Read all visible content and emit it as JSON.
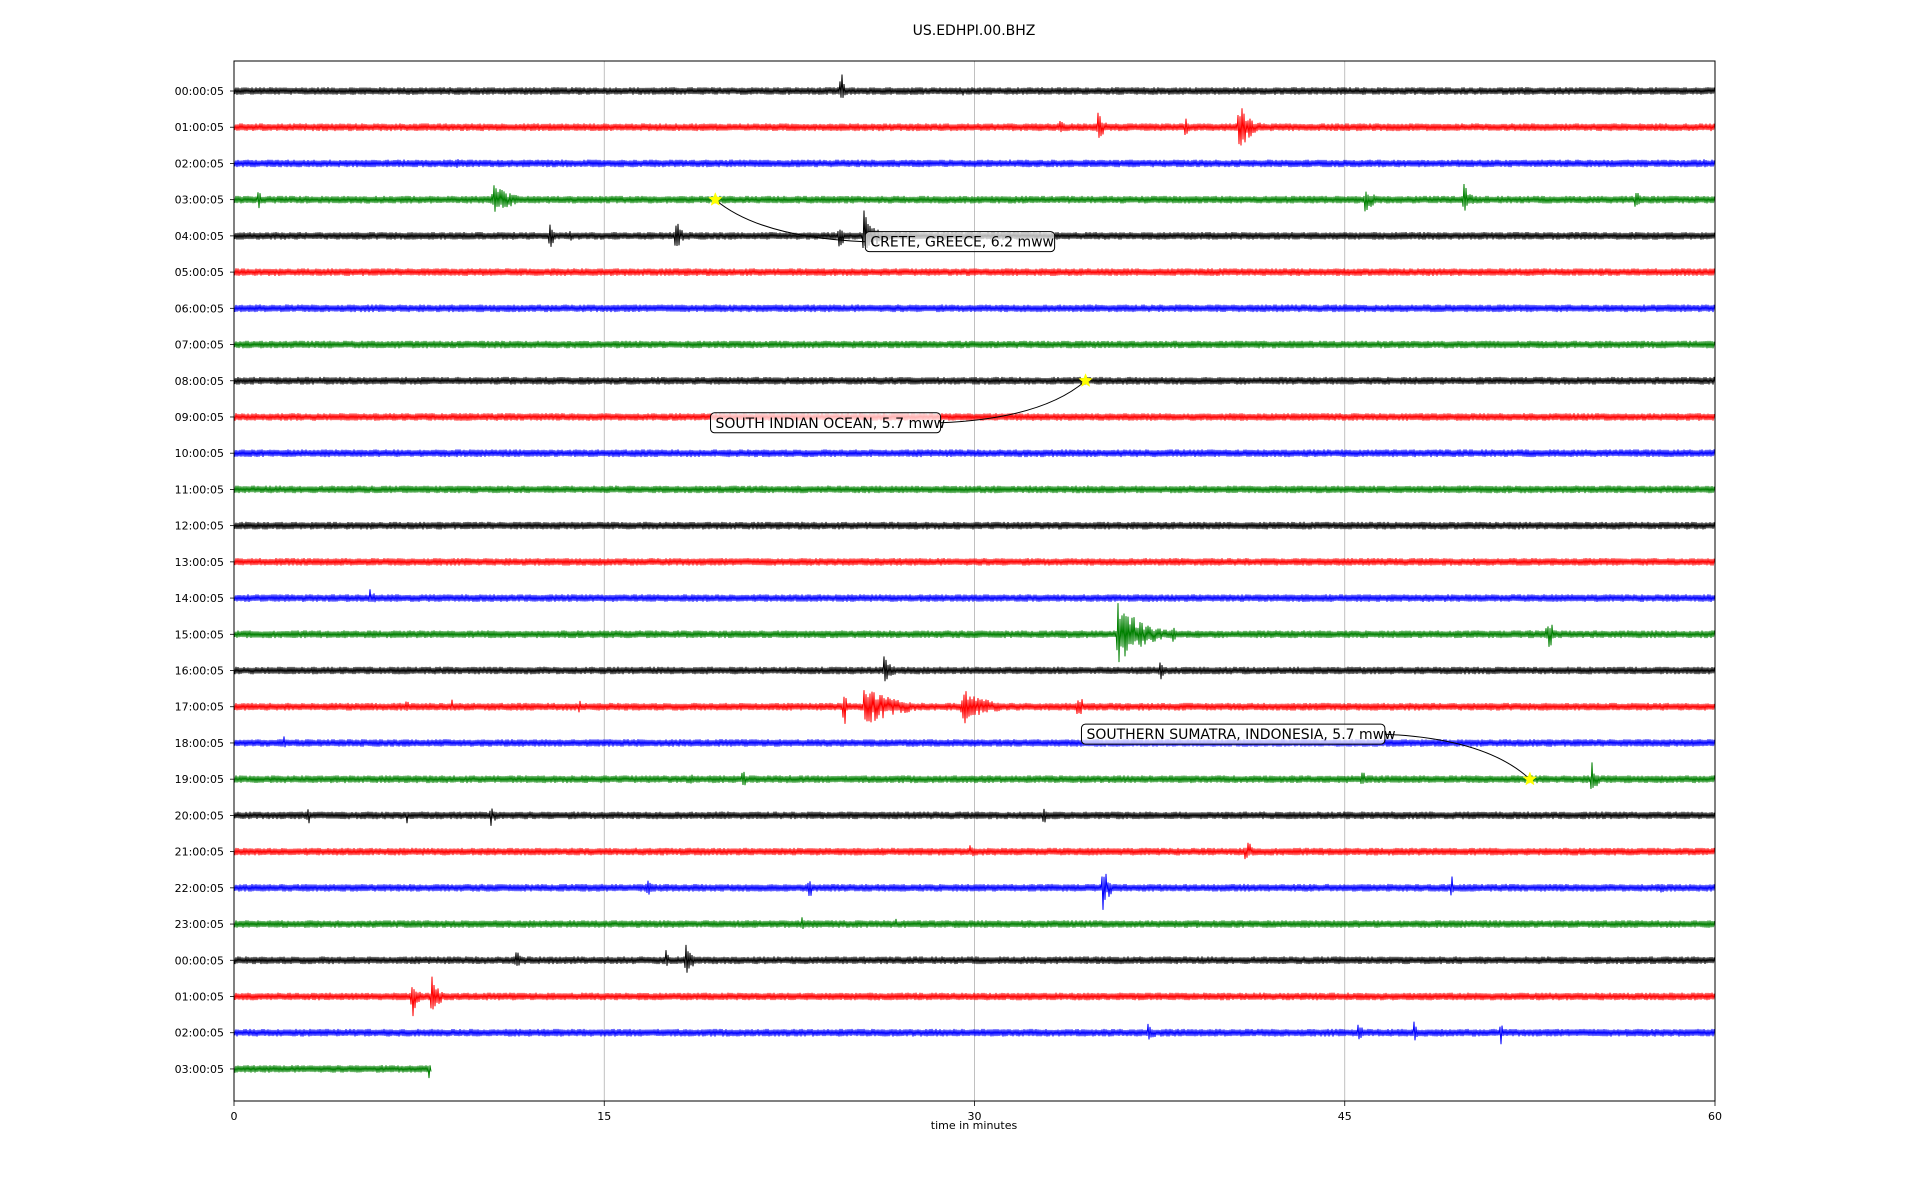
{
  "chart_data": {
    "type": "line",
    "title": "US.EDHPI.00.BHZ",
    "xlabel": "time in minutes",
    "xlim": [
      0,
      60
    ],
    "x_ticks": [
      0,
      15,
      30,
      45,
      60
    ],
    "x_tick_labels": [
      "0",
      "15",
      "30",
      "45",
      "60"
    ],
    "grid_x": true,
    "trace_colors": [
      "#000000",
      "#ff0000",
      "#0000ff",
      "#008000"
    ],
    "row_labels": [
      "00:00:05",
      "01:00:05",
      "02:00:05",
      "03:00:05",
      "04:00:05",
      "05:00:05",
      "06:00:05",
      "07:00:05",
      "08:00:05",
      "09:00:05",
      "10:00:05",
      "11:00:05",
      "12:00:05",
      "13:00:05",
      "14:00:05",
      "15:00:05",
      "16:00:05",
      "17:00:05",
      "18:00:05",
      "19:00:05",
      "20:00:05",
      "21:00:05",
      "22:00:05",
      "23:00:05",
      "00:00:05",
      "01:00:05",
      "02:00:05",
      "03:00:05"
    ],
    "last_row_end_minute": 8.0,
    "events": [
      {
        "label": "CRETE, GREECE, 6.2 mww",
        "row": 3,
        "minute": 19.5
      },
      {
        "label": "SOUTH INDIAN OCEAN, 5.7 mww",
        "row": 8,
        "minute": 34.5
      },
      {
        "label": "SOUTHERN SUMATRA, INDONESIA, 5.7 mww",
        "row": 19,
        "minute": 52.5
      }
    ],
    "bursts": [
      {
        "row": 0,
        "minute": 24.6,
        "amp": 0.9,
        "dur": 0.3
      },
      {
        "row": 0,
        "minute": 29.5,
        "amp": 0.3,
        "dur": 0.2
      },
      {
        "row": 1,
        "minute": 33.5,
        "amp": 0.55,
        "dur": 0.4
      },
      {
        "row": 1,
        "minute": 35.0,
        "amp": 0.6,
        "dur": 0.8
      },
      {
        "row": 1,
        "minute": 38.5,
        "amp": 0.45,
        "dur": 1.2
      },
      {
        "row": 1,
        "minute": 40.7,
        "amp": 1.0,
        "dur": 1.5
      },
      {
        "row": 2,
        "minute": 9.0,
        "amp": 0.3,
        "dur": 0.5
      },
      {
        "row": 2,
        "minute": 23.0,
        "amp": 0.25,
        "dur": 0.3
      },
      {
        "row": 2,
        "minute": 59.6,
        "amp": 0.35,
        "dur": 0.2
      },
      {
        "row": 3,
        "minute": 1.0,
        "amp": 0.7,
        "dur": 0.2
      },
      {
        "row": 3,
        "minute": 10.5,
        "amp": 0.6,
        "dur": 2.5
      },
      {
        "row": 3,
        "minute": 45.8,
        "amp": 0.55,
        "dur": 1.2
      },
      {
        "row": 3,
        "minute": 49.8,
        "amp": 0.75,
        "dur": 0.8
      },
      {
        "row": 3,
        "minute": 56.8,
        "amp": 0.55,
        "dur": 0.4
      },
      {
        "row": 4,
        "minute": 12.8,
        "amp": 0.75,
        "dur": 0.4
      },
      {
        "row": 4,
        "minute": 13.6,
        "amp": 0.5,
        "dur": 0.3
      },
      {
        "row": 4,
        "minute": 17.9,
        "amp": 0.8,
        "dur": 0.6
      },
      {
        "row": 4,
        "minute": 24.5,
        "amp": 0.55,
        "dur": 0.8
      },
      {
        "row": 4,
        "minute": 25.5,
        "amp": 1.2,
        "dur": 1.3
      },
      {
        "row": 4,
        "minute": 48.3,
        "amp": 0.3,
        "dur": 0.2
      },
      {
        "row": 12,
        "minute": 44.9,
        "amp": 0.2,
        "dur": 0.2
      },
      {
        "row": 14,
        "minute": 5.5,
        "amp": 0.4,
        "dur": 0.7
      },
      {
        "row": 15,
        "minute": 35.8,
        "amp": 1.3,
        "dur": 3.0
      },
      {
        "row": 15,
        "minute": 38.0,
        "amp": 0.5,
        "dur": 0.5
      },
      {
        "row": 15,
        "minute": 52.5,
        "amp": 0.3,
        "dur": 0.5
      },
      {
        "row": 15,
        "minute": 53.2,
        "amp": 0.7,
        "dur": 1.0
      },
      {
        "row": 16,
        "minute": 26.3,
        "amp": 0.65,
        "dur": 1.2
      },
      {
        "row": 16,
        "minute": 37.5,
        "amp": 0.5,
        "dur": 0.6
      },
      {
        "row": 17,
        "minute": 7.0,
        "amp": 0.4,
        "dur": 0.2
      },
      {
        "row": 17,
        "minute": 8.8,
        "amp": 0.45,
        "dur": 0.3
      },
      {
        "row": 17,
        "minute": 14.0,
        "amp": 0.7,
        "dur": 0.2
      },
      {
        "row": 17,
        "minute": 24.7,
        "amp": 1.15,
        "dur": 0.3
      },
      {
        "row": 17,
        "minute": 25.5,
        "amp": 0.75,
        "dur": 4.5
      },
      {
        "row": 17,
        "minute": 29.5,
        "amp": 0.75,
        "dur": 3.0
      },
      {
        "row": 17,
        "minute": 34.2,
        "amp": 0.65,
        "dur": 0.6
      },
      {
        "row": 17,
        "minute": 58.3,
        "amp": 0.3,
        "dur": 0.2
      },
      {
        "row": 18,
        "minute": 2.0,
        "amp": 0.5,
        "dur": 0.3
      },
      {
        "row": 18,
        "minute": 21.9,
        "amp": 0.3,
        "dur": 0.2
      },
      {
        "row": 18,
        "minute": 42.5,
        "amp": 0.25,
        "dur": 0.3
      },
      {
        "row": 19,
        "minute": 18.5,
        "amp": 0.3,
        "dur": 0.5
      },
      {
        "row": 19,
        "minute": 20.6,
        "amp": 0.65,
        "dur": 0.3
      },
      {
        "row": 19,
        "minute": 22.5,
        "amp": 0.4,
        "dur": 0.3
      },
      {
        "row": 19,
        "minute": 45.7,
        "amp": 0.55,
        "dur": 0.3
      },
      {
        "row": 19,
        "minute": 55.0,
        "amp": 0.9,
        "dur": 0.6
      },
      {
        "row": 20,
        "minute": 3.0,
        "amp": 0.6,
        "dur": 0.2
      },
      {
        "row": 20,
        "minute": 5.0,
        "amp": 0.3,
        "dur": 0.3
      },
      {
        "row": 20,
        "minute": 7.0,
        "amp": 0.35,
        "dur": 0.2
      },
      {
        "row": 20,
        "minute": 10.4,
        "amp": 0.6,
        "dur": 0.5
      },
      {
        "row": 20,
        "minute": 32.8,
        "amp": 0.55,
        "dur": 0.5
      },
      {
        "row": 21,
        "minute": 29.8,
        "amp": 0.4,
        "dur": 0.6
      },
      {
        "row": 21,
        "minute": 41.0,
        "amp": 0.7,
        "dur": 0.6
      },
      {
        "row": 22,
        "minute": 16.7,
        "amp": 0.45,
        "dur": 0.8
      },
      {
        "row": 22,
        "minute": 23.3,
        "amp": 0.65,
        "dur": 0.5
      },
      {
        "row": 22,
        "minute": 35.2,
        "amp": 0.9,
        "dur": 0.8
      },
      {
        "row": 22,
        "minute": 49.3,
        "amp": 0.75,
        "dur": 0.3
      },
      {
        "row": 22,
        "minute": 57.8,
        "amp": 0.45,
        "dur": 0.3
      },
      {
        "row": 23,
        "minute": 23.0,
        "amp": 0.4,
        "dur": 0.3
      },
      {
        "row": 23,
        "minute": 26.8,
        "amp": 0.35,
        "dur": 0.2
      },
      {
        "row": 24,
        "minute": 11.4,
        "amp": 0.85,
        "dur": 0.4
      },
      {
        "row": 24,
        "minute": 17.5,
        "amp": 0.45,
        "dur": 0.4
      },
      {
        "row": 24,
        "minute": 18.3,
        "amp": 0.65,
        "dur": 1.0
      },
      {
        "row": 25,
        "minute": 7.2,
        "amp": 1.0,
        "dur": 0.6
      },
      {
        "row": 25,
        "minute": 8.0,
        "amp": 1.0,
        "dur": 0.9
      },
      {
        "row": 26,
        "minute": 37.0,
        "amp": 0.45,
        "dur": 1.0
      },
      {
        "row": 26,
        "minute": 45.5,
        "amp": 0.45,
        "dur": 0.8
      },
      {
        "row": 26,
        "minute": 47.8,
        "amp": 0.45,
        "dur": 0.4
      },
      {
        "row": 26,
        "minute": 51.3,
        "amp": 0.95,
        "dur": 0.2
      },
      {
        "row": 27,
        "minute": 7.9,
        "amp": 0.55,
        "dur": 0.2
      }
    ]
  }
}
